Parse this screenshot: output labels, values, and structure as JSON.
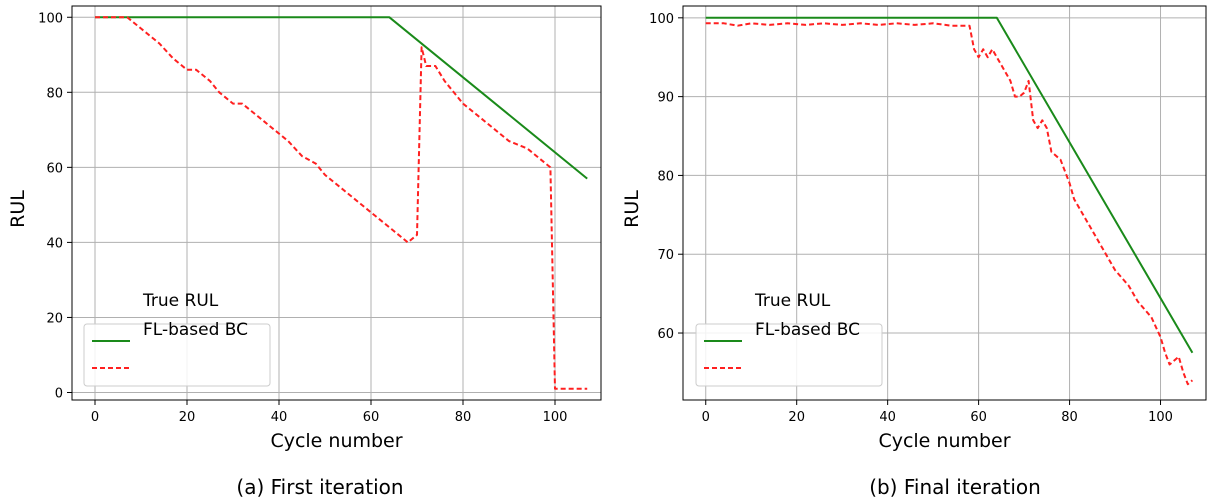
{
  "chart_data": [
    {
      "type": "line",
      "caption": "(a)  First iteration",
      "xlabel": "Cycle number",
      "ylabel": "RUL",
      "xlim": [
        -5,
        110
      ],
      "ylim": [
        -2,
        103
      ],
      "xticks": [
        0,
        20,
        40,
        60,
        80,
        100
      ],
      "yticks": [
        0,
        20,
        40,
        60,
        80,
        100
      ],
      "grid": true,
      "legend": {
        "placement": "lower-left",
        "entries": [
          "True RUL",
          "FL-based  BC"
        ]
      },
      "series": [
        {
          "name": "True RUL",
          "color": "#1a8a1a",
          "style": "solid",
          "x": [
            0,
            64,
            107
          ],
          "y": [
            100,
            100,
            57
          ]
        },
        {
          "name": "FL-based  BC",
          "color": "#ff2020",
          "style": "dashed",
          "x": [
            0,
            7,
            10,
            14,
            17,
            20,
            22,
            25,
            27,
            30,
            32,
            35,
            38,
            42,
            45,
            48,
            50,
            55,
            60,
            65,
            68,
            70,
            71,
            72,
            74,
            76,
            80,
            85,
            90,
            94,
            96,
            99,
            100,
            107
          ],
          "y": [
            100,
            100,
            97,
            93,
            89,
            86,
            86,
            83,
            80,
            77,
            77,
            74,
            71,
            67,
            63,
            61,
            58,
            53,
            48,
            43,
            40,
            42,
            92,
            87,
            87,
            83,
            77,
            72,
            67,
            65,
            63,
            60,
            1,
            1
          ]
        }
      ]
    },
    {
      "type": "line",
      "caption": "(b)  Final iteration",
      "xlabel": "Cycle number",
      "ylabel": "RUL",
      "xlim": [
        -5,
        110
      ],
      "ylim": [
        51.5,
        101.5
      ],
      "xticks": [
        0,
        20,
        40,
        60,
        80,
        100
      ],
      "yticks": [
        60,
        70,
        80,
        90,
        100
      ],
      "grid": true,
      "legend": {
        "placement": "lower-left",
        "entries": [
          "True RUL",
          "FL-based  BC"
        ]
      },
      "series": [
        {
          "name": "True RUL",
          "color": "#1a8a1a",
          "style": "solid",
          "x": [
            0,
            64,
            107
          ],
          "y": [
            100,
            100,
            57.5
          ]
        },
        {
          "name": "FL-based  BC",
          "color": "#ff2020",
          "style": "dashed",
          "x": [
            0,
            4,
            7,
            10,
            14,
            18,
            22,
            26,
            30,
            34,
            38,
            42,
            46,
            50,
            54,
            58,
            59,
            60,
            61,
            62,
            63,
            64,
            66,
            67,
            68,
            69,
            70,
            71,
            72,
            73,
            74,
            75,
            76,
            78,
            80,
            81,
            85,
            90,
            93,
            95,
            98,
            100,
            101,
            102,
            104,
            105,
            106,
            107
          ],
          "y": [
            99.3,
            99.3,
            99.0,
            99.3,
            99.1,
            99.3,
            99.1,
            99.3,
            99.1,
            99.3,
            99.1,
            99.3,
            99.1,
            99.3,
            99.0,
            99.0,
            96,
            95,
            96,
            95,
            96,
            95,
            93,
            92,
            90,
            90,
            90.5,
            92,
            87,
            86,
            87,
            86,
            83,
            82,
            79,
            77,
            73,
            68,
            66,
            64,
            62,
            59.5,
            57.5,
            56,
            57,
            55,
            53.5,
            54
          ]
        }
      ]
    }
  ]
}
